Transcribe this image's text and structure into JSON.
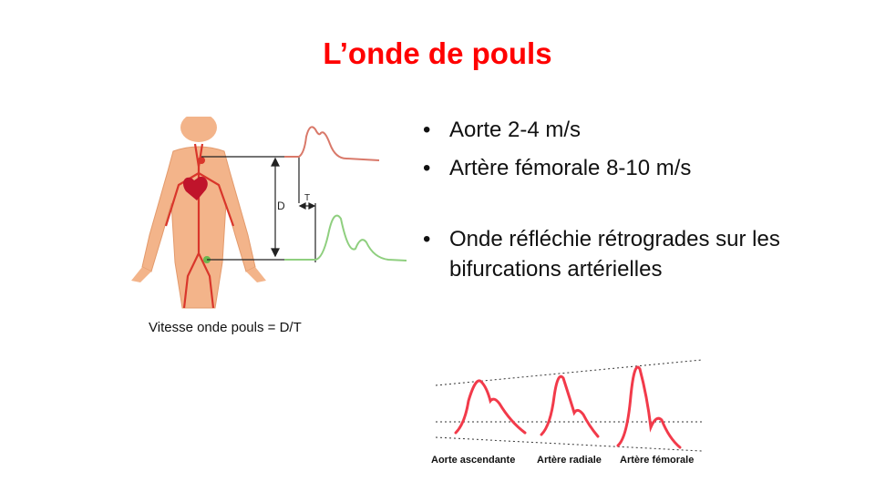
{
  "slide": {
    "title": "L’onde de pouls",
    "bullets": [
      "Aorte 2-4 m/s",
      "Artère fémorale 8-10 m/s",
      "Onde réfléchie rétrogrades sur les bifurcations artérielles"
    ],
    "figure_caption": "Vitesse onde pouls = D/T",
    "figure_labels": {
      "distance": "D",
      "time": "T"
    },
    "wave_labels": [
      "Aorte ascendante",
      "Artère radiale",
      "Artère fémorale"
    ]
  },
  "colors": {
    "title": "#ff0000",
    "skin": "#f3b48a",
    "artery": "#d9362b",
    "upper_wave": "#d9796a",
    "lower_wave": "#8fcf7f",
    "pulse_wave": "#f23a4a"
  }
}
